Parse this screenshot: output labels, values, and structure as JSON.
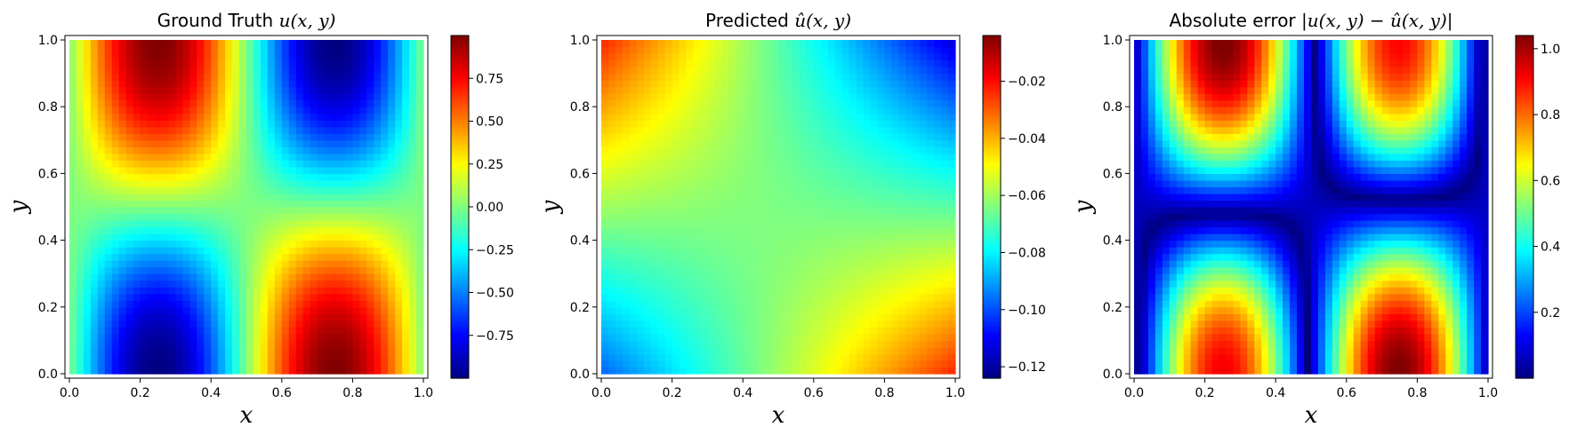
{
  "chart_data": [
    {
      "type": "heatmap",
      "field": "ground_truth",
      "title_text": "Ground Truth ",
      "title_math": "u(x, y)",
      "xlabel": "x",
      "ylabel": "y",
      "xlim": [
        0,
        1
      ],
      "ylim": [
        0,
        1
      ],
      "grid_resolution": 50,
      "colormap": "jet",
      "color_range": [
        -1.0,
        1.0
      ],
      "x_ticks": [
        0.0,
        0.2,
        0.4,
        0.6,
        0.8,
        1.0
      ],
      "x_tick_labels": [
        "0.0",
        "0.2",
        "0.4",
        "0.6",
        "0.8",
        "1.0"
      ],
      "y_ticks": [
        0.0,
        0.2,
        0.4,
        0.6,
        0.8,
        1.0
      ],
      "y_tick_labels": [
        "0.0",
        "0.2",
        "0.4",
        "0.6",
        "0.8",
        "1.0"
      ],
      "colorbar_ticks": [
        -0.75,
        -0.5,
        -0.25,
        0.0,
        0.25,
        0.5,
        0.75
      ],
      "colorbar_tick_labels": [
        "−0.75",
        "−0.50",
        "−0.25",
        "0.00",
        "0.25",
        "0.50",
        "0.75"
      ],
      "grid": false
    },
    {
      "type": "heatmap",
      "field": "predicted",
      "title_text": "Predicted ",
      "title_math": "û(x, y)",
      "xlabel": "x",
      "ylabel": "y",
      "xlim": [
        0,
        1
      ],
      "ylim": [
        0,
        1
      ],
      "grid_resolution": 50,
      "colormap": "jet",
      "color_range": [
        -0.124,
        -0.004
      ],
      "x_ticks": [
        0.0,
        0.2,
        0.4,
        0.6,
        0.8,
        1.0
      ],
      "x_tick_labels": [
        "0.0",
        "0.2",
        "0.4",
        "0.6",
        "0.8",
        "1.0"
      ],
      "y_ticks": [
        0.0,
        0.2,
        0.4,
        0.6,
        0.8,
        1.0
      ],
      "y_tick_labels": [
        "0.0",
        "0.2",
        "0.4",
        "0.6",
        "0.8",
        "1.0"
      ],
      "colorbar_ticks": [
        -0.12,
        -0.1,
        -0.08,
        -0.06,
        -0.04,
        -0.02
      ],
      "colorbar_tick_labels": [
        "−0.12",
        "−0.10",
        "−0.08",
        "−0.06",
        "−0.04",
        "−0.02"
      ],
      "grid": false
    },
    {
      "type": "heatmap",
      "field": "absolute_error",
      "title_text": "Absolute error ",
      "title_math": "|u(x, y) − û(x, y)|",
      "xlabel": "x",
      "ylabel": "y",
      "xlim": [
        0,
        1
      ],
      "ylim": [
        0,
        1
      ],
      "grid_resolution": 50,
      "colormap": "jet",
      "color_range": [
        0.0,
        1.04
      ],
      "x_ticks": [
        0.0,
        0.2,
        0.4,
        0.6,
        0.8,
        1.0
      ],
      "x_tick_labels": [
        "0.0",
        "0.2",
        "0.4",
        "0.6",
        "0.8",
        "1.0"
      ],
      "y_ticks": [
        0.0,
        0.2,
        0.4,
        0.6,
        0.8,
        1.0
      ],
      "y_tick_labels": [
        "0.0",
        "0.2",
        "0.4",
        "0.6",
        "0.8",
        "1.0"
      ],
      "colorbar_ticks": [
        0.2,
        0.4,
        0.6,
        0.8,
        1.0
      ],
      "colorbar_tick_labels": [
        "0.2",
        "0.4",
        "0.6",
        "0.8",
        "1.0"
      ],
      "grid": false
    }
  ]
}
